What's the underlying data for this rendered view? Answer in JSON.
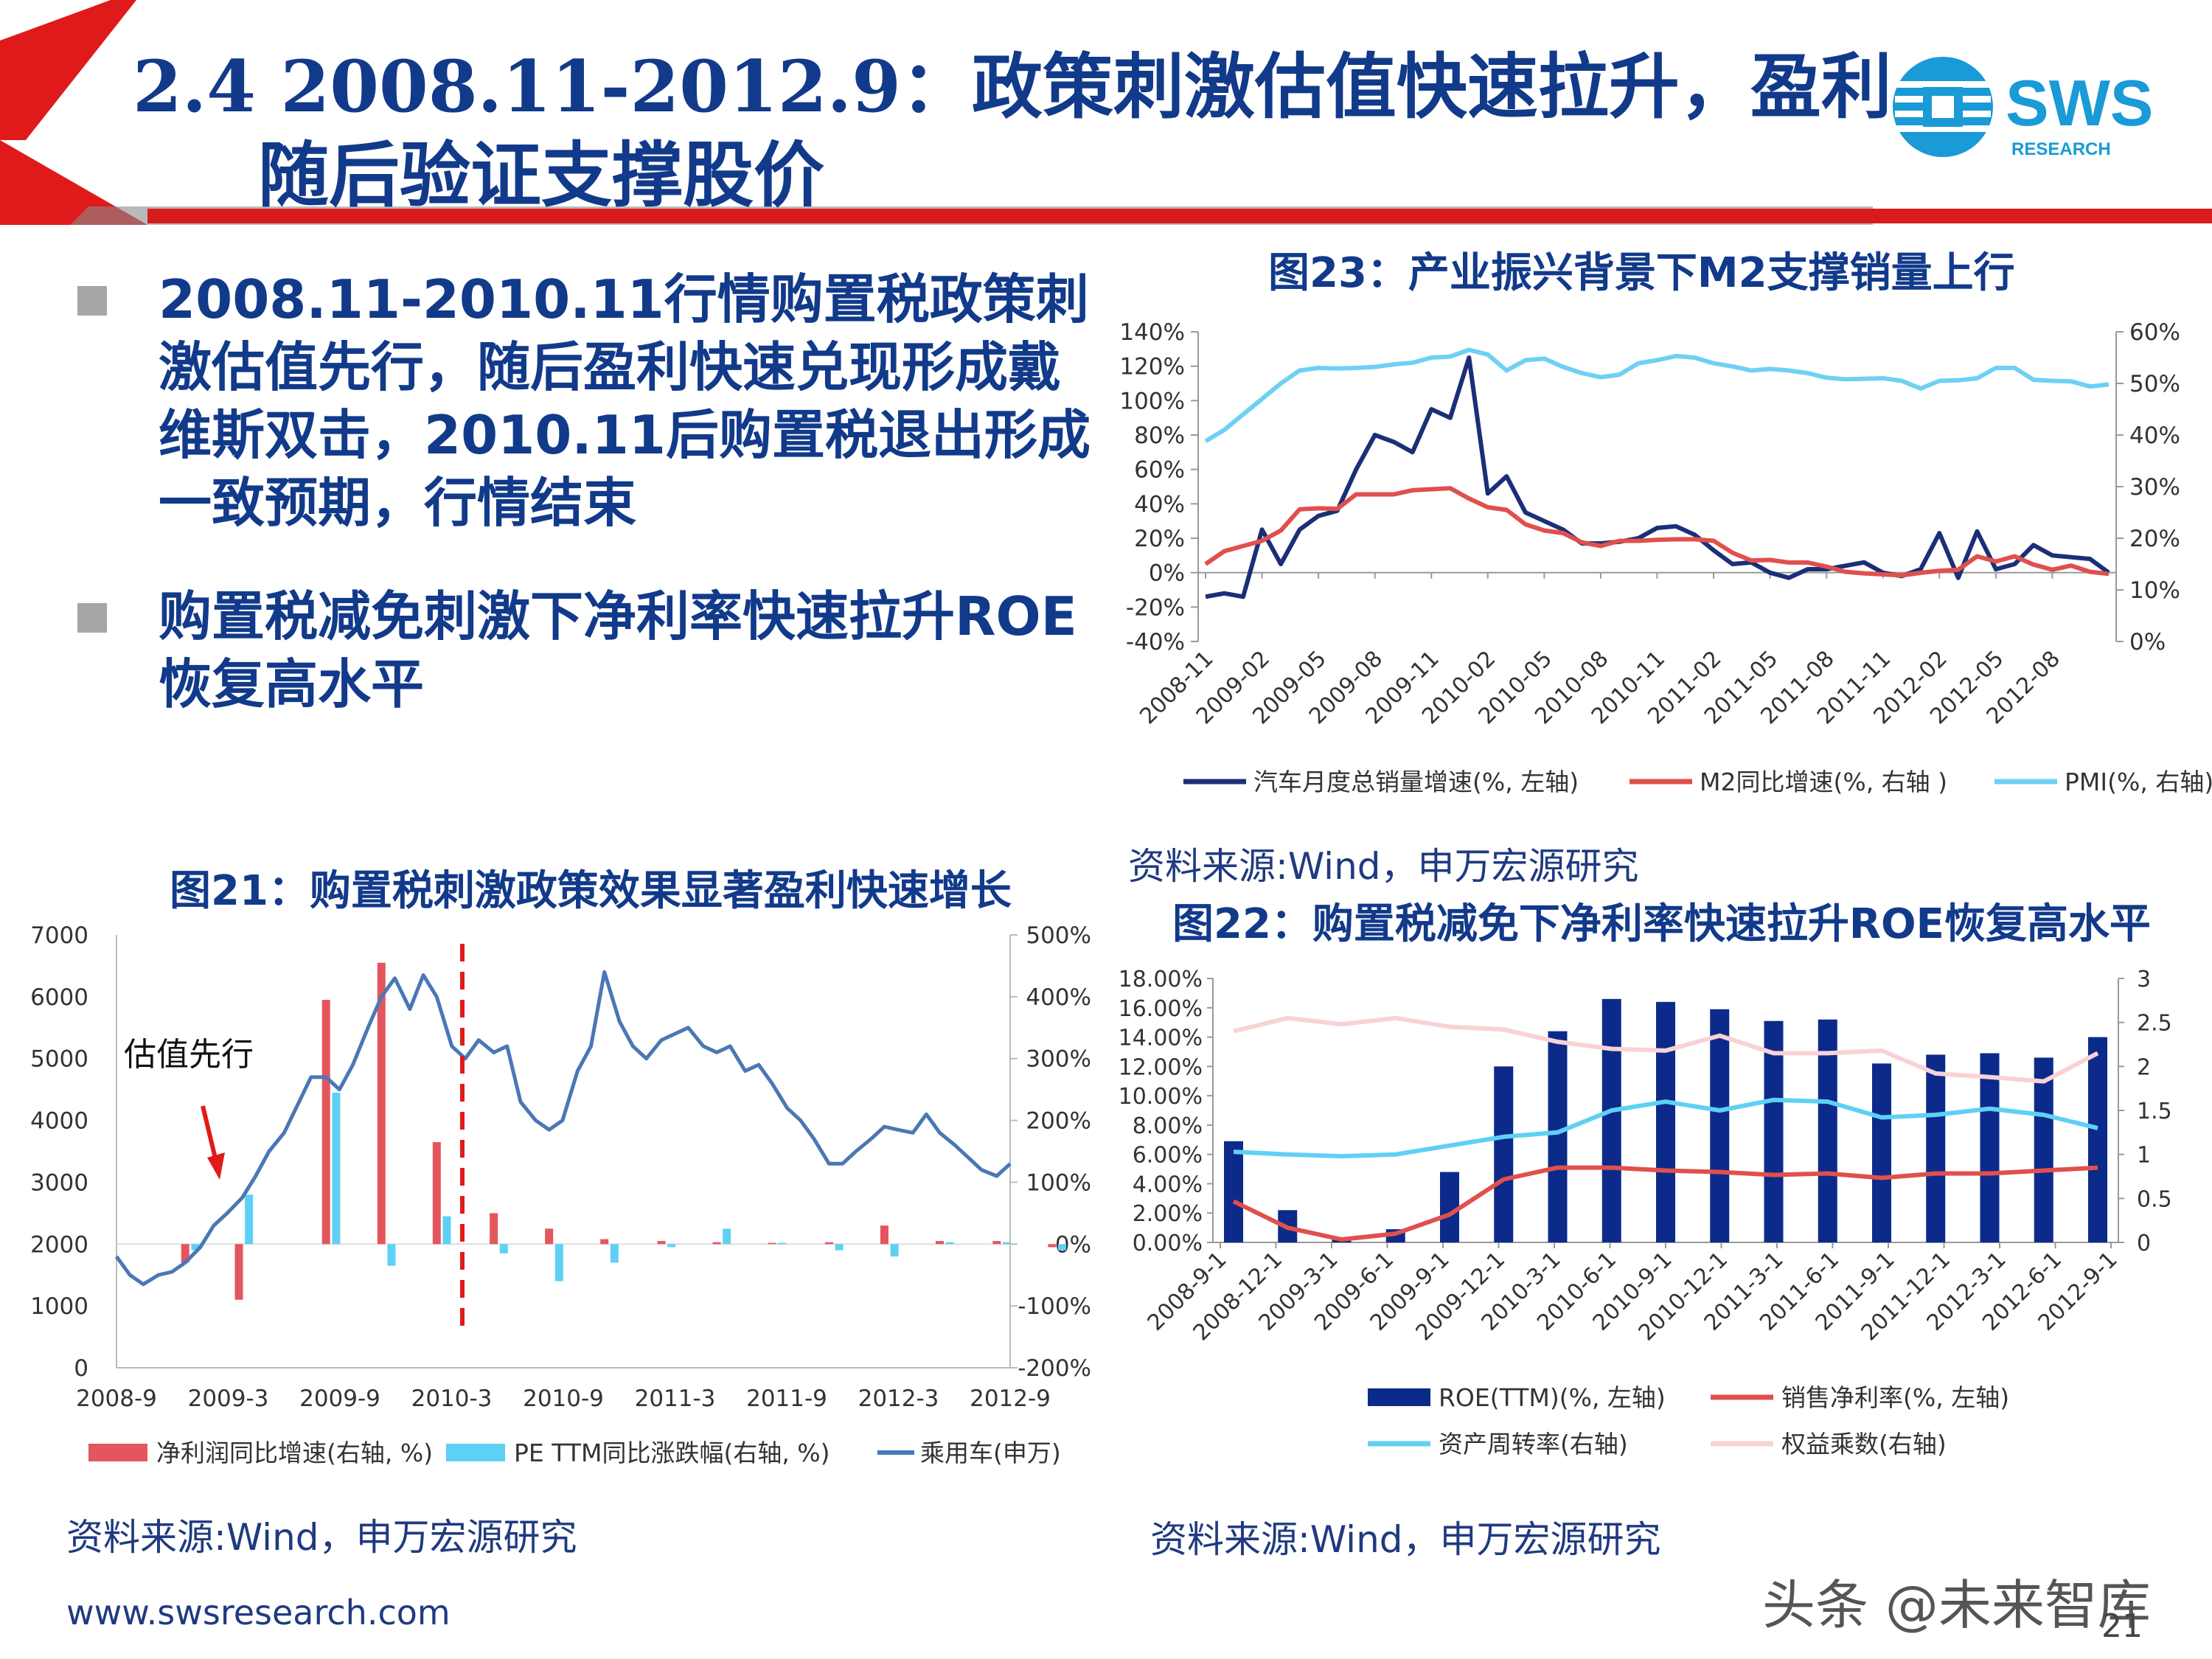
{
  "header": {
    "title_line1": "2.4 2008.11-2012.9：政策刺激估值快速拉升，盈利",
    "title_line2": "随后验证支撑股价",
    "logo_text": "SWS",
    "logo_subtext": "RESEARCH"
  },
  "bullets": [
    {
      "text": "2008.11-2010.11行情购置税政策刺激估值先行，随后盈利快速兑现形成戴维斯双击，2010.11后购置税退出形成一致预期，行情结束"
    },
    {
      "text": "购置税减免刺激下净利率快速拉升ROE恢复高水平"
    }
  ],
  "fig23": {
    "title": "图23：产业振兴背景下M2支撑销量上行",
    "source": "资料来源:Wind，申万宏源研究",
    "chart_data": {
      "type": "line",
      "title": "图23：产业振兴背景下M2支撑销量上行",
      "x_tick_labels": [
        "2008-11",
        "2009-02",
        "2009-05",
        "2009-08",
        "2009-11",
        "2010-02",
        "2010-05",
        "2010-08",
        "2010-11",
        "2011-02",
        "2011-05",
        "2011-08",
        "2011-11",
        "2012-02",
        "2012-05",
        "2012-08"
      ],
      "y_left_ticks": [
        "140%",
        "120%",
        "100%",
        "80%",
        "60%",
        "40%",
        "20%",
        "0%",
        "-20%",
        "-40%"
      ],
      "y_right_ticks": [
        "60%",
        "50%",
        "40%",
        "30%",
        "20%",
        "10%",
        "0%"
      ],
      "ylim_left": [
        -40,
        140
      ],
      "ylim_right": [
        0,
        60
      ],
      "series": [
        {
          "name": "汽车月度总销量增速(%, 左轴)",
          "axis": "left",
          "color": "#1b2f78",
          "values": [
            -14,
            -12,
            -14,
            25,
            5,
            25,
            33,
            36,
            60,
            80,
            76,
            70,
            95,
            90,
            125,
            46,
            56,
            35,
            30,
            25,
            17,
            17,
            18,
            20,
            26,
            27,
            22,
            13,
            5,
            6,
            0,
            -3,
            2,
            2,
            4,
            6,
            0,
            -2,
            2,
            23,
            -3,
            24,
            2,
            5,
            16,
            10,
            9,
            8,
            0
          ]
        },
        {
          "name": "M2同比增速(%, 右轴 )",
          "axis": "right",
          "color": "#e0504c",
          "values": [
            15,
            17.5,
            18.5,
            19.5,
            21.5,
            25.6,
            25.8,
            25.7,
            28.5,
            28.5,
            28.5,
            29.3,
            29.5,
            29.7,
            27.7,
            26,
            25.5,
            22.7,
            21.5,
            21,
            19.2,
            18.5,
            19.5,
            19.5,
            19.7,
            19.8,
            19.8,
            19.5,
            17.2,
            15.7,
            15.8,
            15.3,
            15.3,
            14.5,
            13.5,
            13.2,
            13,
            12.8,
            13.3,
            13.7,
            13.9,
            16.5,
            15.5,
            16.5,
            14.9,
            13.9,
            14.7,
            13.5,
            13.1
          ]
        },
        {
          "name": "PMI(%, 右轴)",
          "axis": "right",
          "color": "#6fd0f5",
          "values": [
            38.8,
            41,
            44,
            47,
            50,
            52.5,
            53,
            52.9,
            53,
            53.2,
            53.7,
            54,
            55,
            55.2,
            56.5,
            55.6,
            52.5,
            54.5,
            54.8,
            53.2,
            52,
            51.2,
            51.7,
            53.9,
            54.5,
            55.3,
            55,
            53.9,
            53.3,
            52.5,
            52.8,
            52.5,
            52,
            51.1,
            50.8,
            50.9,
            51,
            50.5,
            49,
            50.5,
            50.6,
            51,
            53,
            53,
            50.7,
            50.5,
            50.4,
            49.4,
            49.8
          ]
        }
      ],
      "grid": false,
      "legend_position": "bottom"
    }
  },
  "fig21": {
    "title": "图21：购置税刺激政策效果显著盈利快速增长",
    "source": "资料来源:Wind，申万宏源研究",
    "annotation": "估值先行",
    "chart_data": {
      "type": "bar+line",
      "title": "图21：购置税刺激政策效果显著盈利快速增长",
      "x_tick_labels": [
        "2008-9",
        "2009-3",
        "2009-9",
        "2010-3",
        "2010-9",
        "2011-3",
        "2011-9",
        "2012-3",
        "2012-9"
      ],
      "y_left_ticks": [
        "7000",
        "6000",
        "5000",
        "4000",
        "3000",
        "2000",
        "1000",
        "0"
      ],
      "y_right_ticks": [
        "500%",
        "400%",
        "300%",
        "200%",
        "100%",
        "0%",
        "-100%",
        "-200%"
      ],
      "ylim_left": [
        0,
        7000
      ],
      "ylim_right": [
        -200,
        500
      ],
      "series": [
        {
          "name": "净利润同比增速(右轴, %)",
          "axis": "right",
          "type": "bar",
          "color": "#e4565d",
          "points": [
            [
              2009.08,
              -30
            ],
            [
              2009.4,
              -90
            ],
            [
              2009.92,
              395
            ],
            [
              2010.25,
              455
            ],
            [
              2010.58,
              165
            ],
            [
              2010.92,
              50
            ],
            [
              2011.25,
              25
            ],
            [
              2011.58,
              8
            ],
            [
              2011.92,
              5
            ],
            [
              2012.25,
              3
            ],
            [
              2012.58,
              2
            ],
            [
              2012.92,
              3
            ],
            [
              2013.25,
              30
            ],
            [
              2013.58,
              5
            ],
            [
              2013.92,
              5
            ],
            [
              2014.25,
              -5
            ]
          ]
        },
        {
          "name": "PE TTM同比涨跌幅(右轴, %)",
          "axis": "right",
          "type": "bar",
          "color": "#5fd0f5",
          "points": [
            [
              2009.14,
              -10
            ],
            [
              2009.46,
              80
            ],
            [
              2009.98,
              245
            ],
            [
              2010.31,
              -35
            ],
            [
              2010.64,
              45
            ],
            [
              2010.98,
              -15
            ],
            [
              2011.31,
              -60
            ],
            [
              2011.64,
              -30
            ],
            [
              2011.98,
              -5
            ],
            [
              2012.31,
              25
            ],
            [
              2012.64,
              2
            ],
            [
              2012.98,
              -10
            ],
            [
              2013.31,
              -20
            ],
            [
              2013.64,
              3
            ],
            [
              2013.98,
              3
            ],
            [
              2014.31,
              -10
            ]
          ]
        },
        {
          "name": "乘用车(申万)",
          "axis": "left",
          "type": "line",
          "color": "#4a77b5",
          "points": [
            [
              2008.67,
              1800
            ],
            [
              2008.75,
              1500
            ],
            [
              2008.83,
              1350
            ],
            [
              2008.92,
              1500
            ],
            [
              2009.0,
              1550
            ],
            [
              2009.08,
              1700
            ],
            [
              2009.17,
              1950
            ],
            [
              2009.25,
              2300
            ],
            [
              2009.33,
              2500
            ],
            [
              2009.42,
              2750
            ],
            [
              2009.5,
              3100
            ],
            [
              2009.58,
              3500
            ],
            [
              2009.67,
              3800
            ],
            [
              2009.75,
              4250
            ],
            [
              2009.83,
              4700
            ],
            [
              2009.92,
              4700
            ],
            [
              2010.0,
              4500
            ],
            [
              2010.08,
              4900
            ],
            [
              2010.17,
              5500
            ],
            [
              2010.25,
              6000
            ],
            [
              2010.33,
              6300
            ],
            [
              2010.42,
              5800
            ],
            [
              2010.5,
              6350
            ],
            [
              2010.58,
              6000
            ],
            [
              2010.67,
              5200
            ],
            [
              2010.75,
              5000
            ],
            [
              2010.83,
              5300
            ],
            [
              2010.92,
              5100
            ],
            [
              2011.0,
              5200
            ],
            [
              2011.08,
              4300
            ],
            [
              2011.17,
              4000
            ],
            [
              2011.25,
              3850
            ],
            [
              2011.33,
              4000
            ],
            [
              2011.42,
              4800
            ],
            [
              2011.5,
              5200
            ],
            [
              2011.58,
              6400
            ],
            [
              2011.67,
              5600
            ],
            [
              2011.75,
              5200
            ],
            [
              2011.83,
              5000
            ],
            [
              2011.92,
              5300
            ],
            [
              2012.0,
              5400
            ],
            [
              2012.08,
              5500
            ],
            [
              2012.17,
              5200
            ],
            [
              2012.25,
              5100
            ],
            [
              2012.33,
              5200
            ],
            [
              2012.42,
              4800
            ],
            [
              2012.5,
              4900
            ],
            [
              2012.58,
              4600
            ],
            [
              2012.67,
              4200
            ],
            [
              2012.75,
              4000
            ],
            [
              2012.83,
              3700
            ],
            [
              2012.92,
              3300
            ],
            [
              2013.0,
              3300
            ],
            [
              2013.08,
              3500
            ],
            [
              2013.17,
              3700
            ],
            [
              2013.25,
              3900
            ],
            [
              2013.33,
              3850
            ],
            [
              2013.42,
              3800
            ],
            [
              2013.5,
              4100
            ],
            [
              2013.58,
              3800
            ],
            [
              2013.67,
              3600
            ],
            [
              2013.75,
              3400
            ],
            [
              2013.83,
              3200
            ],
            [
              2013.92,
              3100
            ],
            [
              2014.0,
              3300
            ]
          ]
        }
      ],
      "grid": false,
      "legend_position": "bottom"
    }
  },
  "fig22": {
    "title": "图22：购置税减免下净利率快速拉升ROE恢复高水平",
    "source": "资料来源:Wind，申万宏源研究",
    "chart_data": {
      "type": "bar+line",
      "title": "图22：购置税减免下净利率快速拉升ROE恢复高水平",
      "categories": [
        "2008-9-1",
        "2008-12-1",
        "2009-3-1",
        "2009-6-1",
        "2009-9-1",
        "2009-12-1",
        "2010-3-1",
        "2010-6-1",
        "2010-9-1",
        "2010-12-1",
        "2011-3-1",
        "2011-6-1",
        "2011-9-1",
        "2011-12-1",
        "2012-3-1",
        "2012-6-1",
        "2012-9-1"
      ],
      "y_left_ticks": [
        "18.00%",
        "16.00%",
        "14.00%",
        "12.00%",
        "10.00%",
        "8.00%",
        "6.00%",
        "4.00%",
        "2.00%",
        "0.00%"
      ],
      "y_right_ticks": [
        "3",
        "2.5",
        "2",
        "1.5",
        "1",
        "0.5",
        "0"
      ],
      "ylim_left": [
        0,
        18
      ],
      "ylim_right": [
        0,
        3
      ],
      "series": [
        {
          "name": "ROE(TTM)(%, 左轴)",
          "axis": "left",
          "type": "bar",
          "color": "#0c2a8a",
          "values": [
            6.9,
            2.2,
            0.2,
            0.9,
            4.8,
            12,
            14.4,
            16.6,
            16.4,
            15.9,
            15.1,
            15.2,
            12.2,
            12.8,
            12.9,
            12.6,
            14
          ]
        },
        {
          "name": "销售净利率(%, 左轴)",
          "axis": "left",
          "type": "line",
          "color": "#e0504c",
          "values": [
            2.8,
            1.0,
            0.2,
            0.6,
            1.9,
            4.3,
            5.1,
            5.1,
            4.9,
            4.8,
            4.6,
            4.7,
            4.4,
            4.7,
            4.7,
            4.9,
            5.1
          ]
        },
        {
          "name": "资产周转率(右轴)",
          "axis": "right",
          "type": "line",
          "color": "#5fd0f5",
          "values": [
            1.03,
            1.0,
            0.98,
            1.0,
            1.1,
            1.2,
            1.25,
            1.5,
            1.6,
            1.5,
            1.62,
            1.6,
            1.42,
            1.45,
            1.52,
            1.45,
            1.3
          ]
        },
        {
          "name": "权益乘数(右轴)",
          "axis": "right",
          "type": "line",
          "color": "#f9d2d6",
          "values": [
            2.4,
            2.55,
            2.48,
            2.55,
            2.45,
            2.42,
            2.28,
            2.2,
            2.18,
            2.35,
            2.15,
            2.15,
            2.18,
            1.92,
            1.88,
            1.83,
            2.15
          ]
        }
      ],
      "grid": false,
      "legend_position": "bottom"
    }
  },
  "footer": {
    "url": "www.swsresearch.com",
    "watermark": "头条 @未来智库",
    "page_number": "21"
  }
}
